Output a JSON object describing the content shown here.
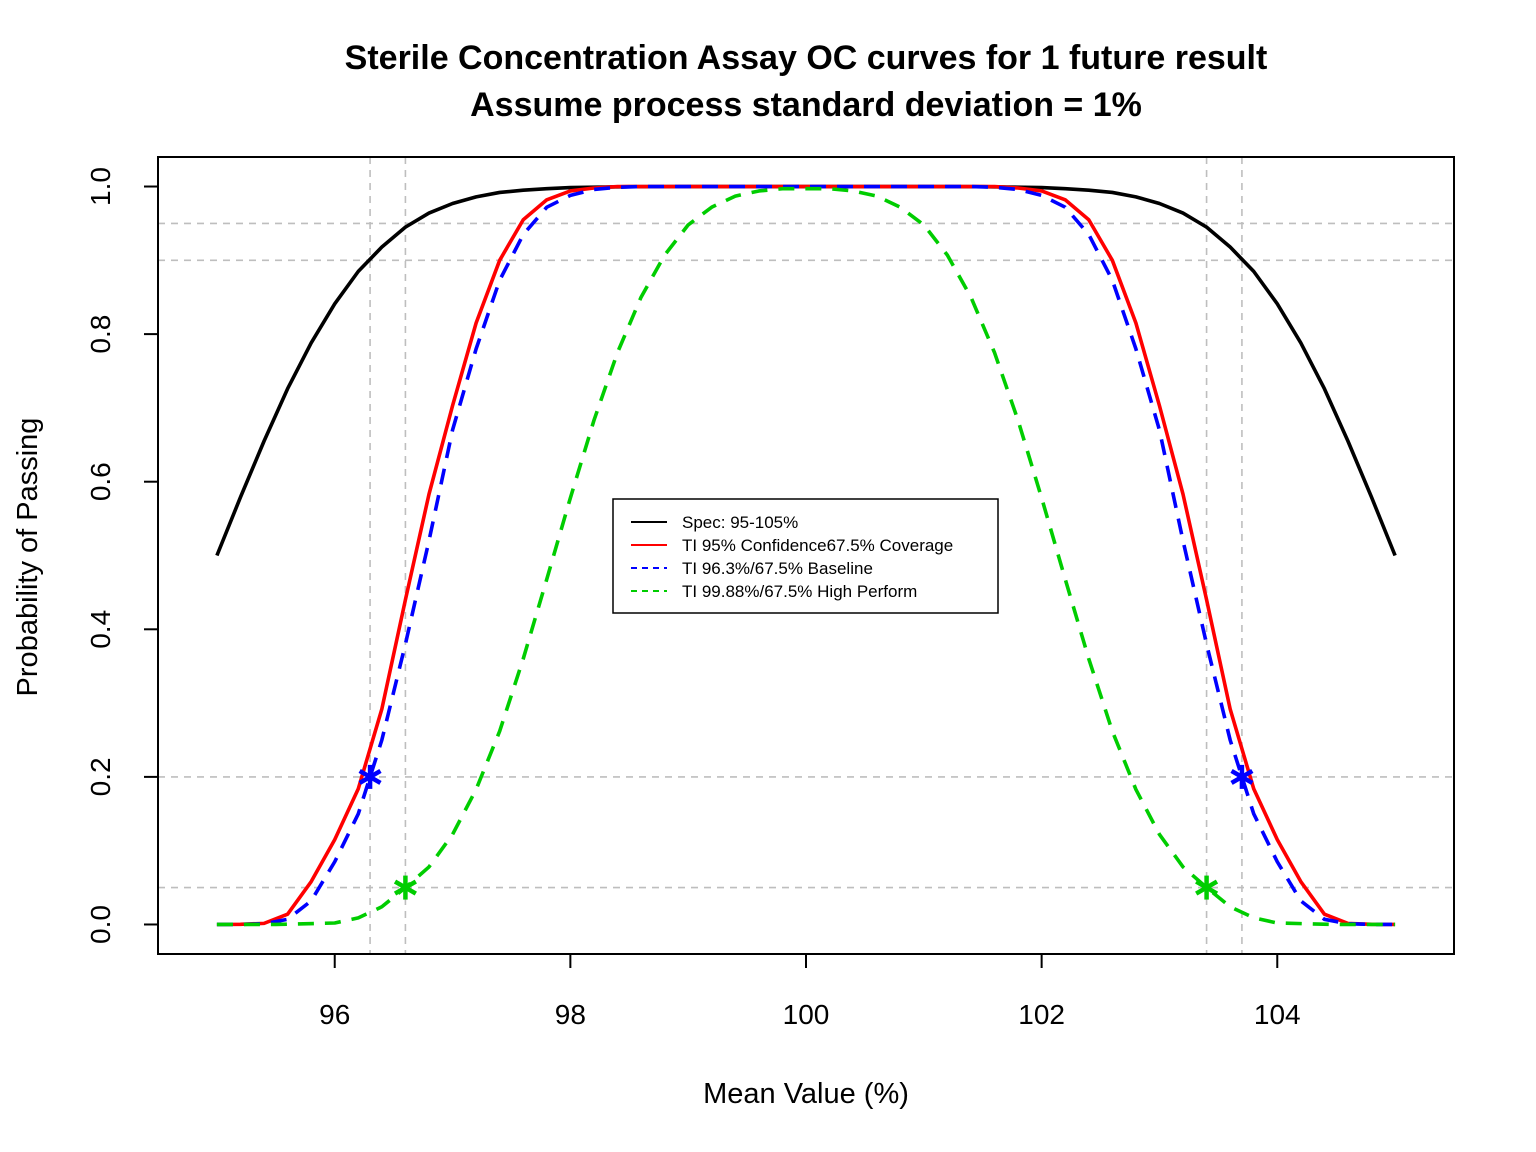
{
  "chart_data": {
    "type": "line",
    "title": "Sterile Concentration Assay OC curves for 1 future result",
    "subtitle": "Assume process standard deviation = 1%",
    "xlabel": "Mean Value (%)",
    "ylabel": "Probability of Passing",
    "xlim": [
      94.5,
      105.5
    ],
    "ylim": [
      -0.04,
      1.04
    ],
    "x_ticks": [
      96,
      98,
      100,
      102,
      104
    ],
    "y_ticks": [
      0.0,
      0.2,
      0.4,
      0.6,
      0.8,
      1.0
    ],
    "x_tick_labels": [
      "96",
      "98",
      "100",
      "102",
      "104"
    ],
    "y_tick_labels": [
      "0.0",
      "0.2",
      "0.4",
      "0.6",
      "0.8",
      "1.0"
    ],
    "grid": false,
    "reference_lines": {
      "horizontal": [
        0.05,
        0.2,
        0.9,
        0.95
      ],
      "vertical": [
        96.3,
        96.6,
        103.4,
        103.7
      ],
      "color": "#bebebe",
      "style": "dashed"
    },
    "legend": {
      "position": "center"
    },
    "series": [
      {
        "name": "Spec: 95-105%",
        "color": "#000000",
        "dashed": false,
        "points": [
          [
            95.0,
            0.5
          ],
          [
            95.2,
            0.579
          ],
          [
            95.4,
            0.655
          ],
          [
            95.6,
            0.726
          ],
          [
            95.8,
            0.788
          ],
          [
            96.0,
            0.841
          ],
          [
            96.2,
            0.885
          ],
          [
            96.4,
            0.918
          ],
          [
            96.6,
            0.945
          ],
          [
            96.8,
            0.964
          ],
          [
            97.0,
            0.977
          ],
          [
            97.2,
            0.986
          ],
          [
            97.4,
            0.992
          ],
          [
            97.6,
            0.995
          ],
          [
            97.8,
            0.997
          ],
          [
            98.0,
            0.9986
          ],
          [
            98.5,
            0.9998
          ],
          [
            99.0,
            1.0
          ],
          [
            100.0,
            1.0
          ],
          [
            101.0,
            1.0
          ],
          [
            101.5,
            0.9998
          ],
          [
            102.0,
            0.9986
          ],
          [
            102.2,
            0.997
          ],
          [
            102.4,
            0.995
          ],
          [
            102.6,
            0.992
          ],
          [
            102.8,
            0.986
          ],
          [
            103.0,
            0.977
          ],
          [
            103.2,
            0.964
          ],
          [
            103.4,
            0.945
          ],
          [
            103.6,
            0.918
          ],
          [
            103.8,
            0.885
          ],
          [
            104.0,
            0.841
          ],
          [
            104.2,
            0.788
          ],
          [
            104.4,
            0.726
          ],
          [
            104.6,
            0.655
          ],
          [
            104.8,
            0.579
          ],
          [
            105.0,
            0.5
          ]
        ]
      },
      {
        "name": "TI 95% Confidence67.5% Coverage",
        "color": "#ff0000",
        "dashed": false,
        "points": [
          [
            95.0,
            0.0
          ],
          [
            95.2,
            0.0002
          ],
          [
            95.4,
            0.0015
          ],
          [
            95.6,
            0.014
          ],
          [
            95.8,
            0.058
          ],
          [
            96.0,
            0.115
          ],
          [
            96.2,
            0.184
          ],
          [
            96.4,
            0.292
          ],
          [
            96.6,
            0.44
          ],
          [
            96.8,
            0.583
          ],
          [
            97.0,
            0.703
          ],
          [
            97.2,
            0.815
          ],
          [
            97.4,
            0.9
          ],
          [
            97.6,
            0.955
          ],
          [
            97.8,
            0.982
          ],
          [
            98.0,
            0.994
          ],
          [
            98.2,
            0.998
          ],
          [
            98.4,
            1.0
          ],
          [
            100.0,
            1.0
          ],
          [
            101.6,
            1.0
          ],
          [
            101.8,
            0.998
          ],
          [
            102.0,
            0.994
          ],
          [
            102.2,
            0.982
          ],
          [
            102.4,
            0.955
          ],
          [
            102.6,
            0.9
          ],
          [
            102.8,
            0.815
          ],
          [
            103.0,
            0.703
          ],
          [
            103.2,
            0.583
          ],
          [
            103.4,
            0.44
          ],
          [
            103.6,
            0.292
          ],
          [
            103.8,
            0.184
          ],
          [
            104.0,
            0.115
          ],
          [
            104.2,
            0.058
          ],
          [
            104.4,
            0.014
          ],
          [
            104.6,
            0.0015
          ],
          [
            104.8,
            0.0002
          ],
          [
            105.0,
            0.0
          ]
        ]
      },
      {
        "name": "TI 96.3%/67.5% Baseline",
        "color": "#0000ff",
        "dashed": true,
        "points": [
          [
            95.0,
            0.0
          ],
          [
            95.2,
            0.0001
          ],
          [
            95.4,
            0.001
          ],
          [
            95.6,
            0.007
          ],
          [
            95.8,
            0.032
          ],
          [
            96.0,
            0.085
          ],
          [
            96.2,
            0.15
          ],
          [
            96.3,
            0.2
          ],
          [
            96.4,
            0.25
          ],
          [
            96.6,
            0.38
          ],
          [
            96.8,
            0.52
          ],
          [
            97.0,
            0.67
          ],
          [
            97.2,
            0.78
          ],
          [
            97.4,
            0.873
          ],
          [
            97.6,
            0.935
          ],
          [
            97.8,
            0.972
          ],
          [
            98.0,
            0.988
          ],
          [
            98.2,
            0.996
          ],
          [
            98.4,
            0.999
          ],
          [
            98.6,
            1.0
          ],
          [
            100.0,
            1.0
          ],
          [
            101.4,
            1.0
          ],
          [
            101.6,
            0.999
          ],
          [
            101.8,
            0.996
          ],
          [
            102.0,
            0.988
          ],
          [
            102.2,
            0.972
          ],
          [
            102.4,
            0.935
          ],
          [
            102.6,
            0.873
          ],
          [
            102.8,
            0.78
          ],
          [
            103.0,
            0.67
          ],
          [
            103.2,
            0.52
          ],
          [
            103.4,
            0.38
          ],
          [
            103.6,
            0.25
          ],
          [
            103.7,
            0.2
          ],
          [
            103.8,
            0.15
          ],
          [
            104.0,
            0.085
          ],
          [
            104.2,
            0.032
          ],
          [
            104.4,
            0.007
          ],
          [
            104.6,
            0.001
          ],
          [
            104.8,
            0.0001
          ],
          [
            105.0,
            0.0
          ]
        ]
      },
      {
        "name": "TI 99.88%/67.5% High Perform",
        "color": "#00cd00",
        "dashed": true,
        "points": [
          [
            95.0,
            0.0
          ],
          [
            95.5,
            0.0
          ],
          [
            96.0,
            0.002
          ],
          [
            96.2,
            0.009
          ],
          [
            96.4,
            0.024
          ],
          [
            96.6,
            0.05
          ],
          [
            96.8,
            0.078
          ],
          [
            97.0,
            0.122
          ],
          [
            97.2,
            0.183
          ],
          [
            97.4,
            0.262
          ],
          [
            97.6,
            0.36
          ],
          [
            97.8,
            0.468
          ],
          [
            98.0,
            0.578
          ],
          [
            98.2,
            0.683
          ],
          [
            98.4,
            0.775
          ],
          [
            98.6,
            0.85
          ],
          [
            98.8,
            0.907
          ],
          [
            99.0,
            0.948
          ],
          [
            99.2,
            0.972
          ],
          [
            99.4,
            0.987
          ],
          [
            99.6,
            0.994
          ],
          [
            99.8,
            0.997
          ],
          [
            100.0,
            0.997
          ],
          [
            100.2,
            0.997
          ],
          [
            100.4,
            0.994
          ],
          [
            100.6,
            0.987
          ],
          [
            100.8,
            0.972
          ],
          [
            101.0,
            0.948
          ],
          [
            101.2,
            0.907
          ],
          [
            101.4,
            0.85
          ],
          [
            101.6,
            0.775
          ],
          [
            101.8,
            0.683
          ],
          [
            102.0,
            0.578
          ],
          [
            102.2,
            0.468
          ],
          [
            102.4,
            0.36
          ],
          [
            102.6,
            0.262
          ],
          [
            102.8,
            0.183
          ],
          [
            103.0,
            0.122
          ],
          [
            103.2,
            0.078
          ],
          [
            103.4,
            0.05
          ],
          [
            103.6,
            0.024
          ],
          [
            103.8,
            0.009
          ],
          [
            104.0,
            0.002
          ],
          [
            104.5,
            0.0
          ],
          [
            105.0,
            0.0
          ]
        ]
      }
    ],
    "markers": [
      {
        "x": 96.3,
        "y": 0.2,
        "color": "#0000ff",
        "symbol": "asterisk"
      },
      {
        "x": 103.7,
        "y": 0.2,
        "color": "#0000ff",
        "symbol": "asterisk"
      },
      {
        "x": 96.6,
        "y": 0.05,
        "color": "#00cd00",
        "symbol": "asterisk"
      },
      {
        "x": 103.4,
        "y": 0.05,
        "color": "#00cd00",
        "symbol": "asterisk"
      }
    ]
  }
}
